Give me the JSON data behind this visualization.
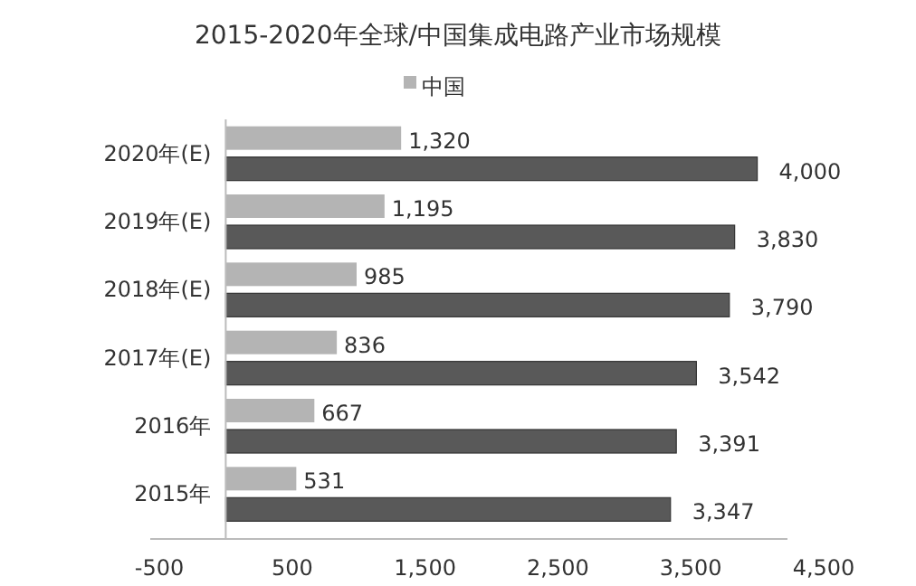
{
  "chart_data": {
    "type": "bar",
    "orientation": "horizontal",
    "title": "2015-2020年全球/中国集成电路产业市场规模",
    "categories": [
      "2020年(E)",
      "2019年(E)",
      "2018年(E)",
      "2017年(E)",
      "2016年",
      "2015年"
    ],
    "series": [
      {
        "name": "中国",
        "color": "#b4b4b4",
        "values": [
          1320,
          1195,
          985,
          836,
          667,
          531
        ],
        "value_labels": [
          "1,320",
          "1,195",
          "985",
          "836",
          "667",
          "531"
        ]
      },
      {
        "color": "#595959",
        "values": [
          4000,
          3830,
          3790,
          3542,
          3391,
          3347
        ],
        "value_labels": [
          "4,000",
          "3,830",
          "3,790",
          "3,542",
          "3,391",
          "3,347"
        ]
      }
    ],
    "xlim": [
      -500,
      4500
    ],
    "xticks": [
      -500,
      500,
      {
        "value": 1500,
        "label": "1,500"
      },
      {
        "value": 2500,
        "label": "2,500"
      },
      {
        "value": 3500,
        "label": "3,500"
      },
      {
        "value": 4500,
        "label": "4,500"
      }
    ],
    "legend": "top",
    "grid": false
  }
}
